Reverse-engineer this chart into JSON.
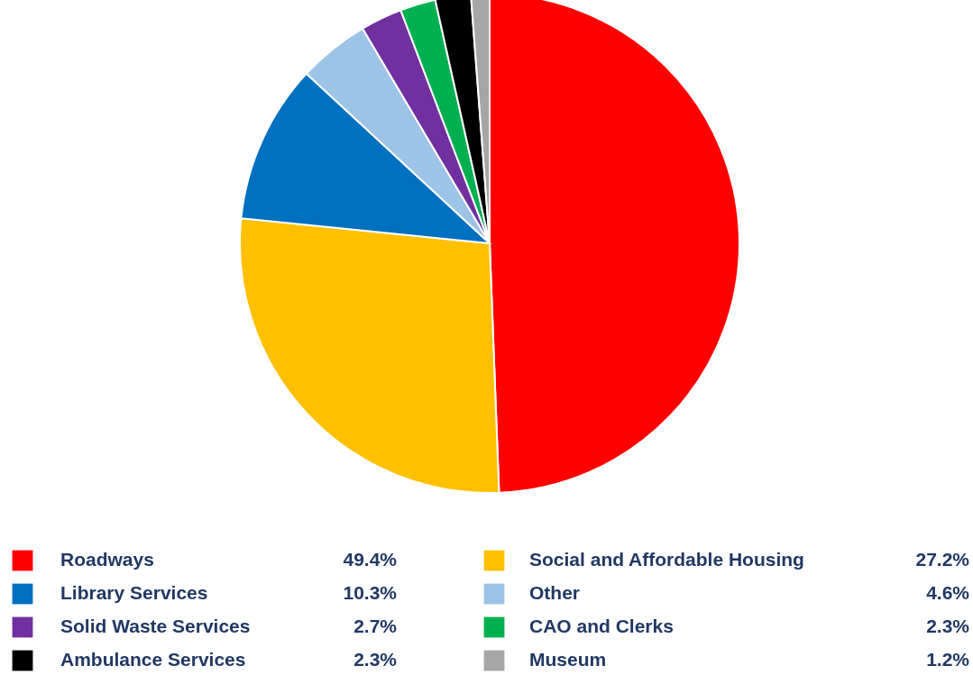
{
  "chart_data": {
    "type": "pie",
    "categories": [
      "Roadways",
      "Social and Affordable Housing",
      "Library Services",
      "Other",
      "Solid Waste Services",
      "CAO and Clerks",
      "Ambulance Services",
      "Museum"
    ],
    "values": [
      49.4,
      27.2,
      10.3,
      4.6,
      2.7,
      2.3,
      2.3,
      1.2
    ],
    "value_labels": [
      "49.4%",
      "27.2%",
      "10.3%",
      "4.6%",
      "2.7%",
      "2.3%",
      "2.3%",
      "1.2%"
    ],
    "colors": [
      "#ff0000",
      "#ffc000",
      "#0070c0",
      "#9dc3e6",
      "#7030a0",
      "#00b050",
      "#000000",
      "#a6a6a6"
    ],
    "legend": "bottom"
  }
}
